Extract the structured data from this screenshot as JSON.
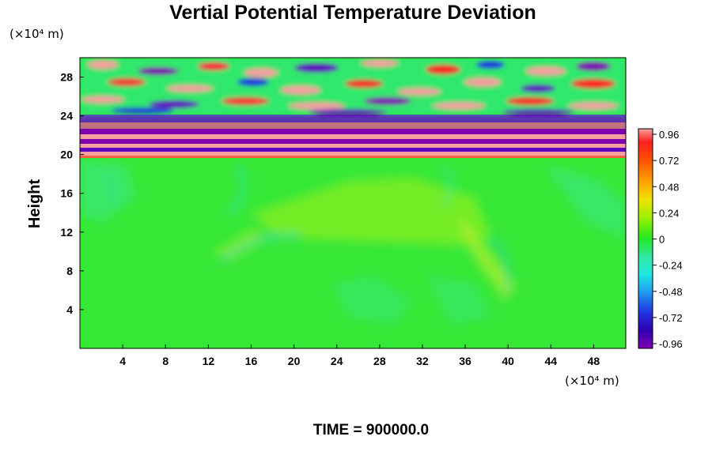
{
  "chart_data": {
    "type": "heatmap",
    "title": "Vertial Potential Temperature Deviation",
    "ylabel": "Height",
    "y_unit": "(×10⁴ m)",
    "x_unit": "(×10⁴ m)",
    "xticks": [
      "4",
      "8",
      "12",
      "16",
      "20",
      "24",
      "28",
      "32",
      "36",
      "40",
      "44",
      "48"
    ],
    "yticks": [
      "4",
      "8",
      "12",
      "16",
      "20",
      "24",
      "28"
    ],
    "xlim": [
      0,
      51
    ],
    "ylim": [
      0,
      30
    ],
    "colorbar": {
      "ticks": [
        "0.96",
        "0.72",
        "0.48",
        "0.24",
        "0",
        "-0.24",
        "-0.48",
        "-0.72",
        "-0.96"
      ],
      "range": [
        -0.96,
        0.96
      ]
    },
    "footer": "TIME = 900000.0",
    "colors": {
      "positive_high": "#f4a0a0",
      "neutral": "#2ee82e",
      "negative_low": "#7a00a8"
    }
  }
}
